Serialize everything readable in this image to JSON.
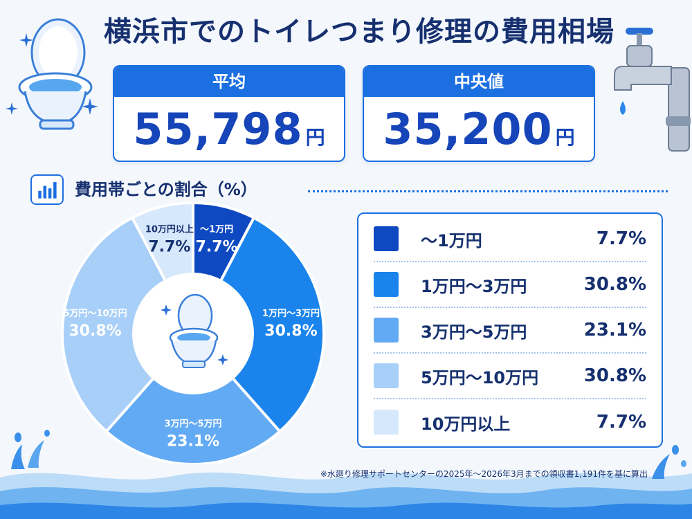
{
  "title": "横浜市でのトイレつまり修理の費用相場",
  "stats": {
    "average": {
      "label": "平均",
      "value": "55,798",
      "unit": "円"
    },
    "median": {
      "label": "中央値",
      "value": "35,200",
      "unit": "円"
    }
  },
  "section": {
    "title": "費用帯ごとの割合（%）",
    "icon": "bar-chart-icon"
  },
  "chart_data": {
    "type": "pie",
    "categories": [
      "～1万円",
      "1万円～3万円",
      "3万円～5万円",
      "5万円～10万円",
      "10万円以上"
    ],
    "values": [
      7.7,
      30.8,
      23.1,
      30.8,
      7.7
    ],
    "value_labels": [
      "7.7%",
      "30.8%",
      "23.1%",
      "30.8%",
      "7.7%"
    ],
    "slice_labels": [
      "～1万円",
      "1万円～3万円",
      "3万円～5万円",
      "5万円～10万円",
      "10万円以上"
    ],
    "colors": [
      "#0f49c2",
      "#1a84ec",
      "#62aaf3",
      "#a7cff8",
      "#d6e8fc"
    ],
    "label_colors": [
      "#ffffff",
      "#ffffff",
      "#ffffff",
      "#ffffff",
      "#16306f"
    ],
    "center_icon": "toilet-icon",
    "legend_placement": "right"
  },
  "footnote": "※水廻り修理サポートセンターの2025年～2026年3月までの領収書1,191件を基に算出",
  "decorations": [
    "toilet-icon",
    "faucet-icon",
    "sparkle-icon",
    "water-splash-icon",
    "water-wave-icon"
  ]
}
